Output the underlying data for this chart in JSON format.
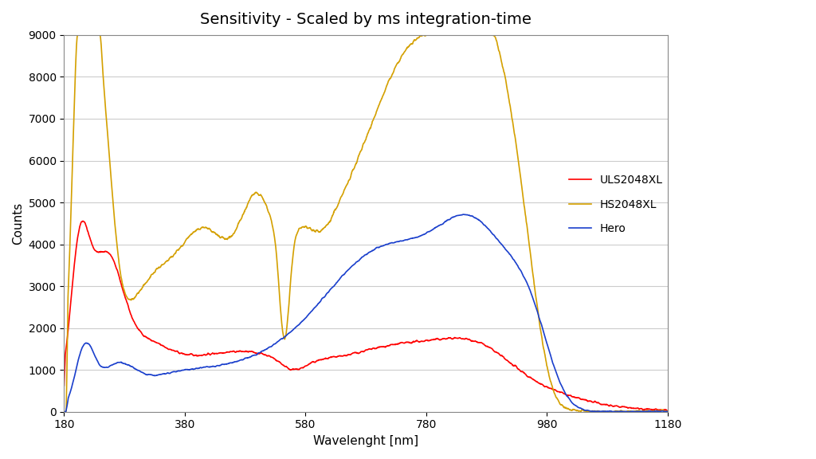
{
  "title": "Sensitivity - Scaled by ms integration-time",
  "xlabel": "Wavelenght [nm]",
  "ylabel": "Counts",
  "xlim": [
    180,
    1180
  ],
  "ylim": [
    0,
    9000
  ],
  "yticks": [
    0,
    1000,
    2000,
    3000,
    4000,
    5000,
    6000,
    7000,
    8000,
    9000
  ],
  "xticks": [
    180,
    380,
    580,
    780,
    980,
    1180
  ],
  "background_color": "#ffffff",
  "grid_color": "#cccccc",
  "legend": [
    {
      "label": "ULS2048XL",
      "color": "#ff0000"
    },
    {
      "label": "HS2048XL",
      "color": "#d4a000"
    },
    {
      "label": "Hero",
      "color": "#1a3fcc"
    }
  ],
  "title_fontsize": 14,
  "axis_label_fontsize": 11,
  "tick_fontsize": 10
}
